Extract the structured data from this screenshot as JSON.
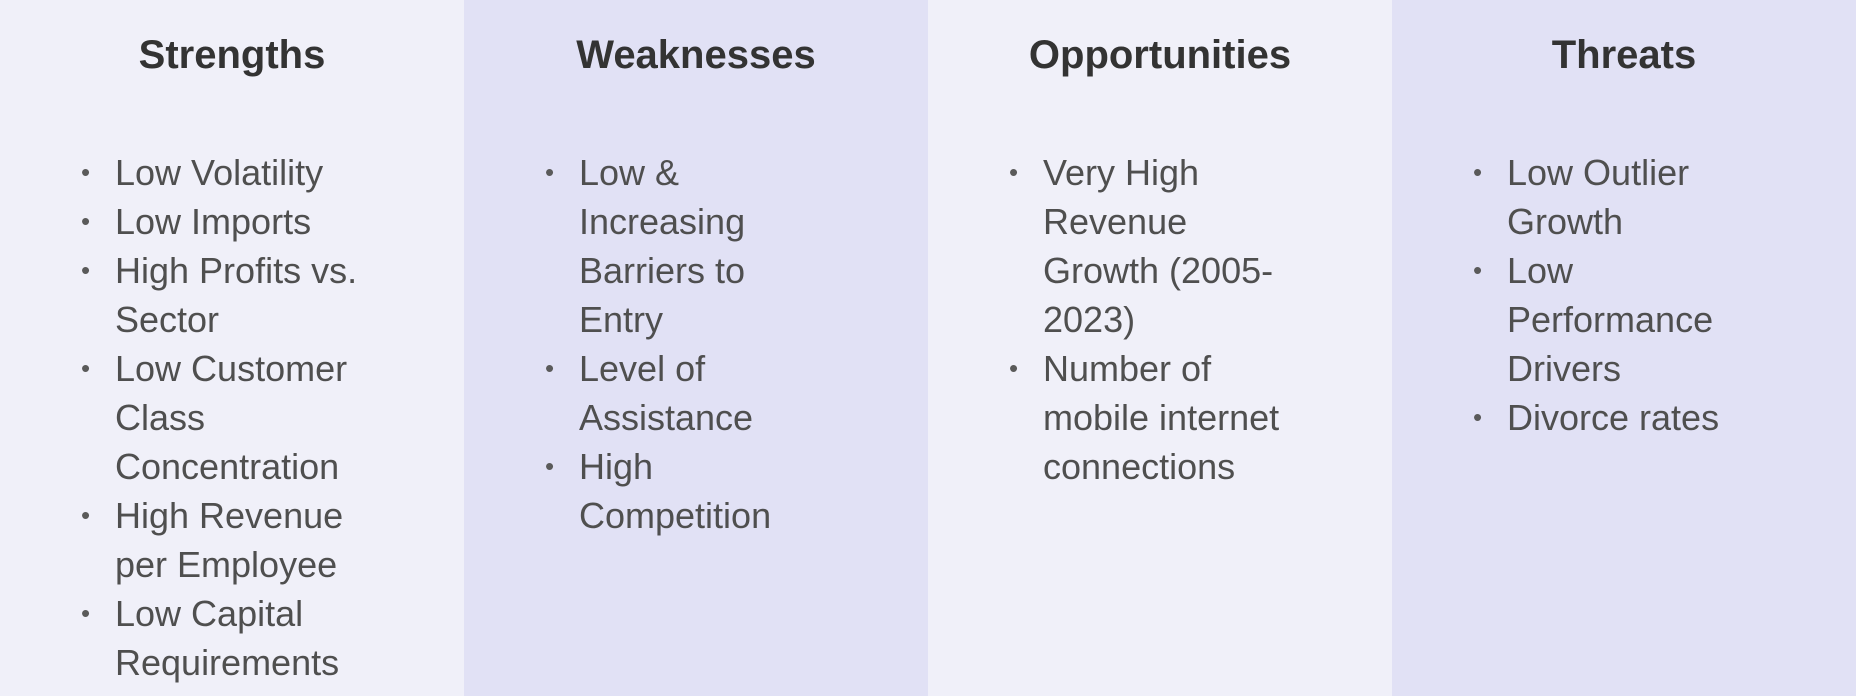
{
  "swot": {
    "strengths": {
      "title": "Strengths",
      "items": [
        "Low Volatility",
        "Low Imports",
        "High Profits vs. Sector",
        "Low Customer Class Concentration",
        "High Revenue per Employee",
        "Low Capital Requirements"
      ]
    },
    "weaknesses": {
      "title": "Weaknesses",
      "items": [
        "Low & Increasing Barriers to Entry",
        "Level of Assistance",
        "High Competition"
      ]
    },
    "opportunities": {
      "title": "Opportunities",
      "items": [
        "Very High Revenue Growth (2005-2023)",
        "Number of mobile internet connections"
      ]
    },
    "threats": {
      "title": "Threats",
      "items": [
        "Low Outlier Growth",
        "Low Performance Drivers",
        "Divorce rates"
      ]
    }
  },
  "colors": {
    "light_column": "#f0f0f9",
    "dark_column": "#e1e1f5",
    "heading": "#333333",
    "body_text": "#4f4f4f"
  }
}
